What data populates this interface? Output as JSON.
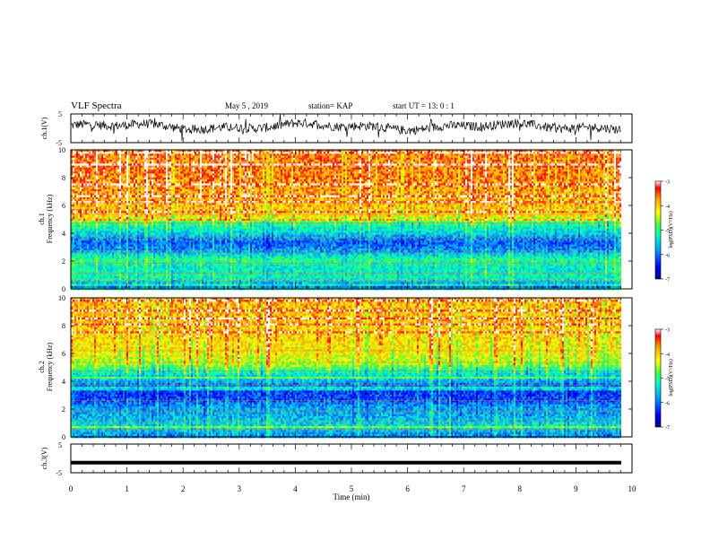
{
  "header": {
    "title": "VLF Spectra",
    "date": "May 5  , 2019",
    "station": "station= KAP",
    "start": "start  UT  =   13: 0  : 1"
  },
  "colors": {
    "spectrum_scale": [
      "#00008b",
      "#0000ff",
      "#00a0ff",
      "#00ffc0",
      "#40ff40",
      "#c8ff00",
      "#ffff00",
      "#ffa000",
      "#ff3000",
      "#ff0000",
      "#ffffff"
    ],
    "trace": "#000000"
  },
  "chart_data": [
    {
      "type": "line",
      "panel": "ch1-waveform",
      "ylabel": "ch.1(V)",
      "ylim": [
        -5,
        5
      ],
      "y_ticks": [
        "5",
        "-5"
      ],
      "xlim": [
        0,
        10
      ],
      "description_values": "noisy voltage trace oscillating roughly between -2 and 3 V"
    },
    {
      "type": "heatmap",
      "panel": "ch1-spectrogram",
      "ylabel": "ch.1\nFrequency (kHz)",
      "ylim": [
        0,
        10
      ],
      "y_ticks": [
        "0",
        "2",
        "4",
        "6",
        "8",
        "10"
      ],
      "xlim": [
        0,
        10
      ],
      "band_profile": [
        {
          "f": 0.3,
          "level": 0.25
        },
        {
          "f": 0.8,
          "level": 0.45
        },
        {
          "f": 1.5,
          "level": 0.42
        },
        {
          "f": 2.2,
          "level": 0.48
        },
        {
          "f": 2.8,
          "level": 0.3
        },
        {
          "f": 3.4,
          "level": 0.22
        },
        {
          "f": 4.2,
          "level": 0.4
        },
        {
          "f": 4.8,
          "level": 0.5
        },
        {
          "f": 5.3,
          "level": 0.72
        },
        {
          "f": 6.2,
          "level": 0.78
        },
        {
          "f": 7.5,
          "level": 0.82
        },
        {
          "f": 9.0,
          "level": 0.85
        }
      ],
      "colorbar": {
        "label": "log(PSD)(V²/Hz)",
        "range": [
          -7,
          -3
        ],
        "ticks": [
          "-3",
          "-4",
          "-5",
          "-6",
          "-7"
        ]
      }
    },
    {
      "type": "heatmap",
      "panel": "ch2-spectrogram",
      "ylabel": "ch.2\nFrequency (kHz)",
      "ylim": [
        0,
        10
      ],
      "y_ticks": [
        "0",
        "2",
        "4",
        "6",
        "8",
        "10"
      ],
      "xlim": [
        0,
        10
      ],
      "band_profile": [
        {
          "f": 0.3,
          "level": 0.3
        },
        {
          "f": 0.8,
          "level": 0.4
        },
        {
          "f": 1.5,
          "level": 0.33
        },
        {
          "f": 2.2,
          "level": 0.3
        },
        {
          "f": 2.8,
          "level": 0.2
        },
        {
          "f": 3.4,
          "level": 0.18
        },
        {
          "f": 4.2,
          "level": 0.35
        },
        {
          "f": 4.8,
          "level": 0.45
        },
        {
          "f": 5.3,
          "level": 0.62
        },
        {
          "f": 6.2,
          "level": 0.7
        },
        {
          "f": 7.5,
          "level": 0.75
        },
        {
          "f": 9.0,
          "level": 0.78
        }
      ],
      "colorbar": {
        "label": "log(PSD)(V²/Hz)",
        "range": [
          -7,
          -3
        ],
        "ticks": [
          "-3",
          "-4",
          "-5",
          "-6",
          "-7"
        ]
      }
    },
    {
      "type": "line",
      "panel": "ch3-waveform",
      "ylabel": "ch.3(V)",
      "ylim": [
        -5,
        5
      ],
      "y_ticks": [
        "5",
        "-5"
      ],
      "xlim": [
        0,
        10
      ],
      "constant_value": -1.5
    }
  ],
  "xaxis": {
    "label": "Time  (min)",
    "ticks": [
      "0",
      "1",
      "2",
      "3",
      "4",
      "5",
      "6",
      "7",
      "8",
      "9",
      "10"
    ]
  }
}
